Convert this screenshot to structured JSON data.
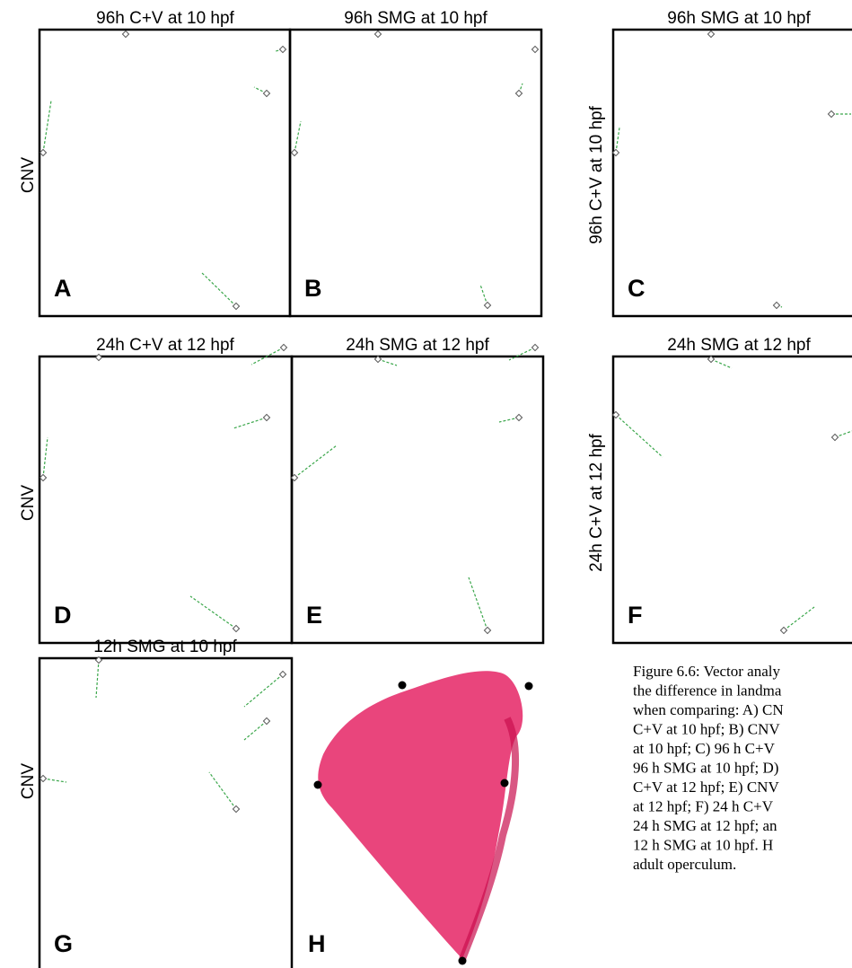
{
  "panels": [
    {
      "letter": "A",
      "title": "96h C+V at 10 hpf"
    },
    {
      "letter": "B",
      "title": "96h SMG at 10 hpf"
    },
    {
      "letter": "C",
      "title": "96h SMG at 10 hpf"
    },
    {
      "letter": "D",
      "title": "24h C+V at 12 hpf"
    },
    {
      "letter": "E",
      "title": "24h SMG at 12 hpf"
    },
    {
      "letter": "F",
      "title": "24h SMG at 12 hpf"
    },
    {
      "letter": "G",
      "title": "12h SMG at 10 hpf"
    },
    {
      "letter": "H"
    }
  ],
  "row_labels": [
    "CNV",
    "CNV",
    "CNV"
  ],
  "side_labels": [
    "96h C+V at 10 hpf",
    "24h C+V at 12 hpf"
  ],
  "caption": {
    "lines": [
      "Figure 6.6: Vector analy",
      "the difference in landma",
      "when comparing: A) CN",
      "C+V at 10 hpf; B) CNV",
      "at 10 hpf; C) 96 h C+V",
      "96 h SMG at 10 hpf; D)",
      "C+V at 12 hpf; E) CNV",
      "at 12 hpf; F) 24 h C+V",
      "24 h SMG at 12 hpf; an",
      "12 h SMG at 10 hpf.  H",
      "adult operculum."
    ]
  }
}
